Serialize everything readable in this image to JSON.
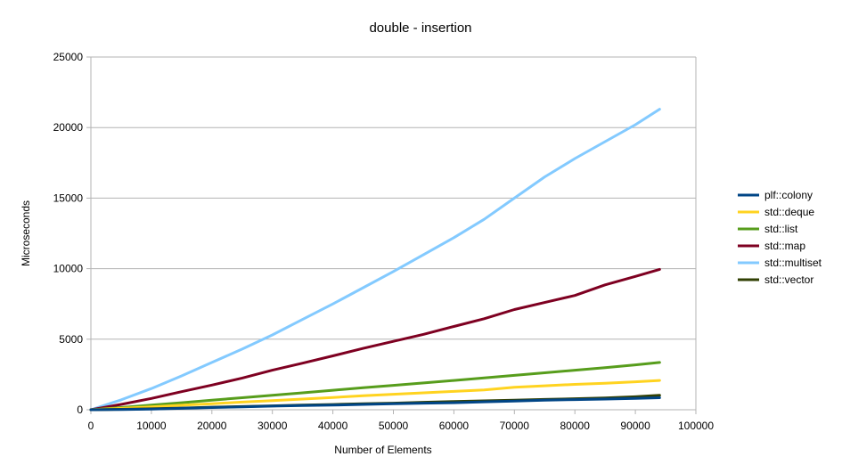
{
  "chart_data": {
    "type": "line",
    "title": "double - insertion",
    "xlabel": "Number of Elements",
    "ylabel": "Microseconds",
    "xlim": [
      0,
      100000
    ],
    "ylim": [
      0,
      25000
    ],
    "xticks": [
      "0",
      "10000",
      "20000",
      "30000",
      "40000",
      "50000",
      "60000",
      "70000",
      "80000",
      "90000",
      "100000"
    ],
    "yticks": [
      "0",
      "5000",
      "10000",
      "15000",
      "20000",
      "25000"
    ],
    "grid": "horizontal",
    "legend_position": "right",
    "series": [
      {
        "name": "plf::colony",
        "color": "#004586",
        "x": [
          0,
          5000,
          10000,
          15000,
          20000,
          25000,
          30000,
          35000,
          40000,
          45000,
          50000,
          55000,
          60000,
          65000,
          70000,
          75000,
          80000,
          85000,
          90000,
          94000
        ],
        "y": [
          0,
          20,
          50,
          100,
          160,
          200,
          260,
          300,
          330,
          380,
          430,
          470,
          500,
          560,
          620,
          680,
          720,
          760,
          800,
          850
        ]
      },
      {
        "name": "std::deque",
        "color": "#ffd320",
        "x": [
          0,
          5000,
          10000,
          15000,
          20000,
          25000,
          30000,
          35000,
          40000,
          45000,
          50000,
          55000,
          60000,
          65000,
          70000,
          75000,
          80000,
          85000,
          90000,
          94000
        ],
        "y": [
          0,
          100,
          200,
          320,
          430,
          540,
          650,
          760,
          870,
          990,
          1100,
          1200,
          1300,
          1400,
          1600,
          1700,
          1800,
          1880,
          1980,
          2080
        ]
      },
      {
        "name": "std::list",
        "color": "#579d1c",
        "x": [
          0,
          5000,
          10000,
          15000,
          20000,
          25000,
          30000,
          35000,
          40000,
          45000,
          50000,
          55000,
          60000,
          65000,
          70000,
          75000,
          80000,
          85000,
          90000,
          94000
        ],
        "y": [
          0,
          160,
          330,
          500,
          680,
          850,
          1020,
          1200,
          1380,
          1560,
          1730,
          1900,
          2080,
          2260,
          2440,
          2620,
          2800,
          2980,
          3180,
          3350
        ]
      },
      {
        "name": "std::map",
        "color": "#7e0021",
        "x": [
          0,
          5000,
          10000,
          15000,
          20000,
          25000,
          30000,
          35000,
          40000,
          45000,
          50000,
          55000,
          60000,
          65000,
          70000,
          75000,
          80000,
          85000,
          90000,
          94000
        ],
        "y": [
          0,
          380,
          800,
          1280,
          1750,
          2250,
          2800,
          3300,
          3820,
          4350,
          4850,
          5350,
          5900,
          6450,
          7100,
          7600,
          8100,
          8850,
          9450,
          9950
        ]
      },
      {
        "name": "std::multiset",
        "color": "#83caff",
        "x": [
          0,
          5000,
          10000,
          15000,
          20000,
          25000,
          30000,
          35000,
          40000,
          45000,
          50000,
          55000,
          60000,
          65000,
          70000,
          75000,
          80000,
          85000,
          90000,
          94000
        ],
        "y": [
          0,
          700,
          1500,
          2400,
          3350,
          4300,
          5300,
          6400,
          7500,
          8650,
          9800,
          11000,
          12200,
          13500,
          15000,
          16500,
          17800,
          19000,
          20200,
          21300
        ]
      },
      {
        "name": "std::vector",
        "color": "#314004",
        "x": [
          0,
          5000,
          10000,
          15000,
          20000,
          25000,
          30000,
          35000,
          40000,
          45000,
          50000,
          55000,
          60000,
          65000,
          70000,
          75000,
          80000,
          85000,
          90000,
          94000
        ],
        "y": [
          0,
          30,
          70,
          120,
          180,
          230,
          280,
          330,
          370,
          420,
          470,
          530,
          580,
          630,
          680,
          730,
          780,
          840,
          920,
          1020
        ]
      }
    ]
  }
}
